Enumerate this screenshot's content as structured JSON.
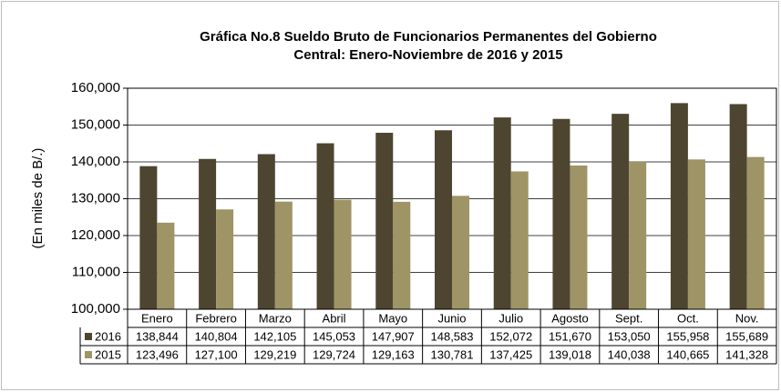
{
  "chart_data": {
    "type": "bar",
    "title": [
      "Gráfica No.8 Sueldo Bruto de Funcionarios Permanentes del Gobierno",
      "Central: Enero-Noviembre de 2016 y 2015"
    ],
    "ylabel": "(En miles de B/.)",
    "categories": [
      "Enero",
      "Febrero",
      "Marzo",
      "Abril",
      "Mayo",
      "Junio",
      "Julio",
      "Agosto",
      "Sept.",
      "Oct.",
      "Nov."
    ],
    "series": [
      {
        "name": "2016",
        "color": "#4d4530",
        "values": [
          138844,
          140804,
          142105,
          145053,
          147907,
          148583,
          152072,
          151670,
          153050,
          155958,
          155689
        ],
        "value_labels": [
          "138,844",
          "140,804",
          "142,105",
          "145,053",
          "147,907",
          "148,583",
          "152,072",
          "151,670",
          "153,050",
          "155,958",
          "155,689"
        ]
      },
      {
        "name": "2015",
        "color": "#9e9466",
        "values": [
          123496,
          127100,
          129219,
          129724,
          129163,
          130781,
          137425,
          139018,
          140038,
          140665,
          141328
        ],
        "value_labels": [
          "123,496",
          "127,100",
          "129,219",
          "129,724",
          "129,163",
          "130,781",
          "137,425",
          "139,018",
          "140,038",
          "140,665",
          "141,328"
        ]
      }
    ],
    "ylim": [
      100000,
      160000
    ],
    "yticks": [
      {
        "value": 100000,
        "label": "100,000"
      },
      {
        "value": 110000,
        "label": "110,000"
      },
      {
        "value": 120000,
        "label": "120,000"
      },
      {
        "value": 130000,
        "label": "130,000"
      },
      {
        "value": 140000,
        "label": "140,000"
      },
      {
        "value": 150000,
        "label": "150,000"
      },
      {
        "value": 160000,
        "label": "160,000"
      }
    ],
    "grid": true
  }
}
